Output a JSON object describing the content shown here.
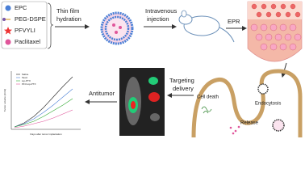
{
  "legend": {
    "items": [
      {
        "label": "EPC"
      },
      {
        "label": "PEG-DSPE"
      },
      {
        "label": "PFVYLI"
      },
      {
        "label": "Paclitaxel"
      }
    ]
  },
  "steps": {
    "thin_film": [
      "Thin film",
      "hydration"
    ],
    "injection": [
      "Intravenous",
      "injection"
    ],
    "epr": "EPR",
    "targeting": [
      "Targeting",
      "delivery"
    ],
    "antitumor": "Antitumor",
    "endocytosis": "Endocytosis",
    "cell_death": "Cell death",
    "release": "Release"
  },
  "inset": {
    "y_label": "Tumor volume (mm3)",
    "x_label": "Days after tumor implantation",
    "series": [
      "Saline",
      "Taxol",
      "Lip-PTX",
      "PFV-Lip-PTX"
    ]
  }
}
